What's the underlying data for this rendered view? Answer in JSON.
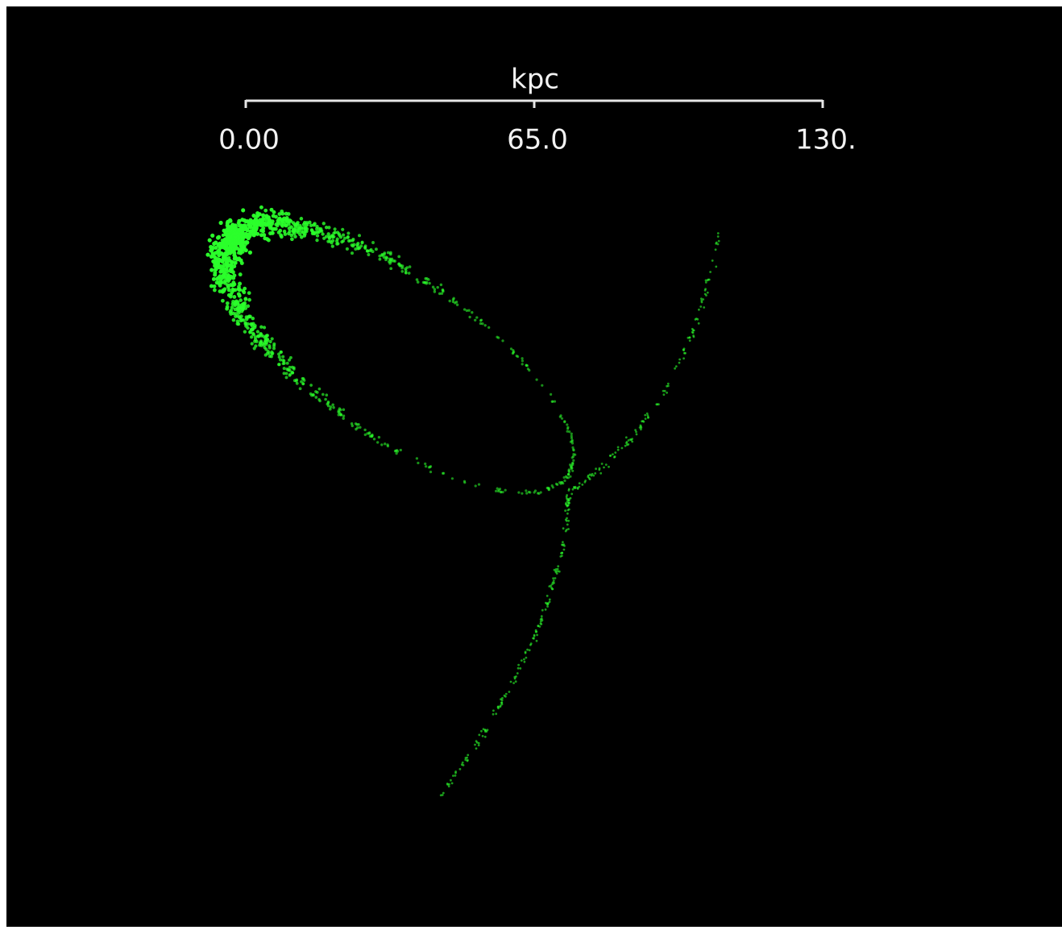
{
  "scale_bar": {
    "label": "kpc",
    "ticks": [
      {
        "value": 0,
        "label": "0.00"
      },
      {
        "value": 65,
        "label": "65.0"
      },
      {
        "value": 130,
        "label": "130."
      }
    ]
  }
}
